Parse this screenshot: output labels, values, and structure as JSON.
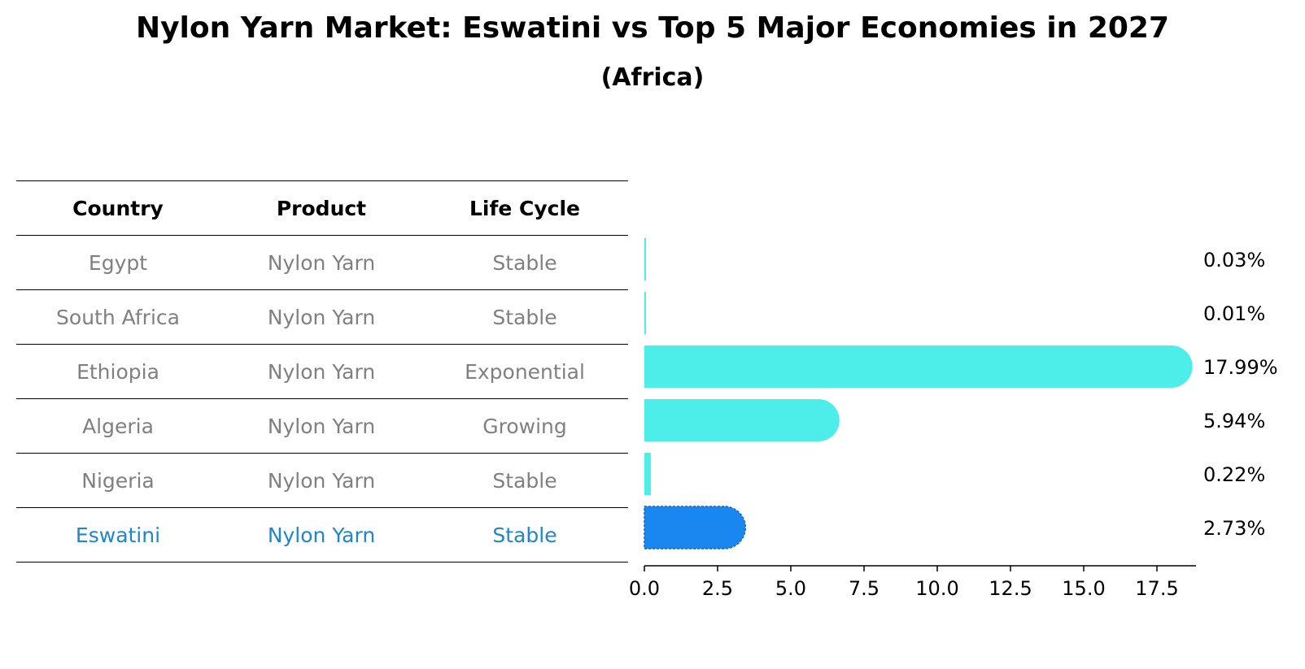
{
  "title": "Nylon Yarn Market: Eswatini vs Top 5 Major Economies in 2027",
  "subtitle": "(Africa)",
  "table": {
    "headers": [
      "Country",
      "Product",
      "Life Cycle"
    ],
    "rows": [
      {
        "country": "Egypt",
        "product": "Nylon Yarn",
        "life_cycle": "Stable"
      },
      {
        "country": "South Africa",
        "product": "Nylon Yarn",
        "life_cycle": "Stable"
      },
      {
        "country": "Ethiopia",
        "product": "Nylon Yarn",
        "life_cycle": "Exponential"
      },
      {
        "country": "Algeria",
        "product": "Nylon Yarn",
        "life_cycle": "Growing"
      },
      {
        "country": "Nigeria",
        "product": "Nylon Yarn",
        "life_cycle": "Stable"
      },
      {
        "country": "Eswatini",
        "product": "Nylon Yarn",
        "life_cycle": "Stable"
      }
    ]
  },
  "colors": {
    "bar": "#4deeea",
    "highlight_bar": "#1a86f0",
    "highlight_text": "#1f85d3",
    "muted_text": "#808080"
  },
  "chart_data": {
    "type": "bar",
    "orientation": "horizontal",
    "categories": [
      "Egypt",
      "South Africa",
      "Ethiopia",
      "Algeria",
      "Nigeria",
      "Eswatini"
    ],
    "values": [
      0.03,
      0.01,
      17.99,
      5.94,
      0.22,
      2.73
    ],
    "value_labels": [
      "0.03%",
      "0.01%",
      "17.99%",
      "5.94%",
      "0.22%",
      "2.73%"
    ],
    "highlight": "Eswatini",
    "xlim": [
      0,
      18.9
    ],
    "xticks": [
      0.0,
      2.5,
      5.0,
      7.5,
      10.0,
      12.5,
      15.0,
      17.5
    ],
    "xtick_labels": [
      "0.0",
      "2.5",
      "5.0",
      "7.5",
      "10.0",
      "12.5",
      "15.0",
      "17.5"
    ],
    "grid": false
  }
}
